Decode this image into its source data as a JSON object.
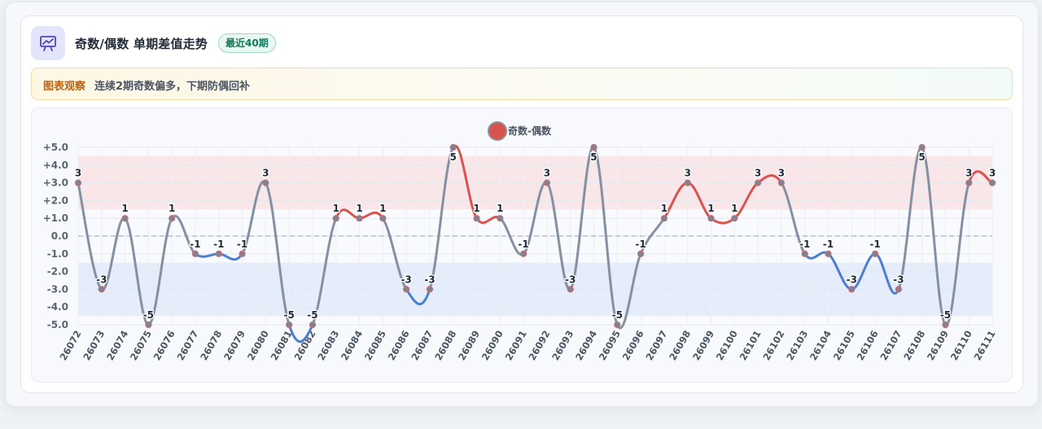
{
  "header": {
    "title": "奇数/偶数 单期差值走势",
    "badge": "最近40期",
    "icon": "presentation-chart-icon"
  },
  "note": {
    "tag": "图表观察",
    "text": "连续2期奇数偏多，下期防偶回补"
  },
  "colors": {
    "positive": "#d9534f",
    "negative": "#4a7fd4",
    "neutral": "#8590a3",
    "positive_band": "#f9d9dc",
    "negative_band": "#d9e3f8",
    "legend_dot": "#d9534f"
  },
  "chart_data": {
    "type": "line",
    "title": "",
    "xlabel": "",
    "ylabel": "",
    "ylim": [
      -5,
      5
    ],
    "legend": "top-center",
    "grid": true,
    "y_ticks": [
      "+5.0",
      "+4.0",
      "+3.0",
      "+2.0",
      "+1.0",
      "0.0",
      "-1.0",
      "-2.0",
      "-3.0",
      "-4.0",
      "-5.0"
    ],
    "bands": [
      {
        "from": 1.5,
        "to": 4.5,
        "kind": "positive"
      },
      {
        "from": -4.5,
        "to": -1.5,
        "kind": "negative"
      }
    ],
    "categories": [
      "26072",
      "26073",
      "26074",
      "26075",
      "26076",
      "26077",
      "26078",
      "26079",
      "26080",
      "26081",
      "26082",
      "26083",
      "26084",
      "26085",
      "26086",
      "26087",
      "26088",
      "26089",
      "26090",
      "26091",
      "26092",
      "26093",
      "26094",
      "26095",
      "26096",
      "26097",
      "26098",
      "26099",
      "26100",
      "26101",
      "26102",
      "26103",
      "26104",
      "26105",
      "26106",
      "26107",
      "26108",
      "26109",
      "26110",
      "26111"
    ],
    "series": [
      {
        "name": "奇数-偶数",
        "values": [
          3,
          -3,
          1,
          -5,
          1,
          -1,
          -1,
          -1,
          3,
          -5,
          -5,
          1,
          1,
          1,
          -3,
          -3,
          5,
          1,
          1,
          -1,
          3,
          -3,
          5,
          -5,
          -1,
          1,
          3,
          1,
          1,
          3,
          3,
          -1,
          -1,
          -3,
          -1,
          -3,
          5,
          -5,
          3,
          3
        ],
        "labels": [
          "3",
          "-3",
          "1",
          "-5",
          "1",
          "-1",
          "-1",
          "-1",
          "3",
          "-5",
          "-5",
          "1",
          "1",
          "1",
          "-3",
          "-3",
          "5",
          "1",
          "1",
          "-1",
          "3",
          "-3",
          "5",
          "-5",
          "-1",
          "1",
          "3",
          "1",
          "1",
          "3",
          "3",
          "-1",
          "-1",
          "-3",
          "-1",
          "-3",
          "5",
          "-5",
          "3",
          "3"
        ]
      }
    ]
  }
}
